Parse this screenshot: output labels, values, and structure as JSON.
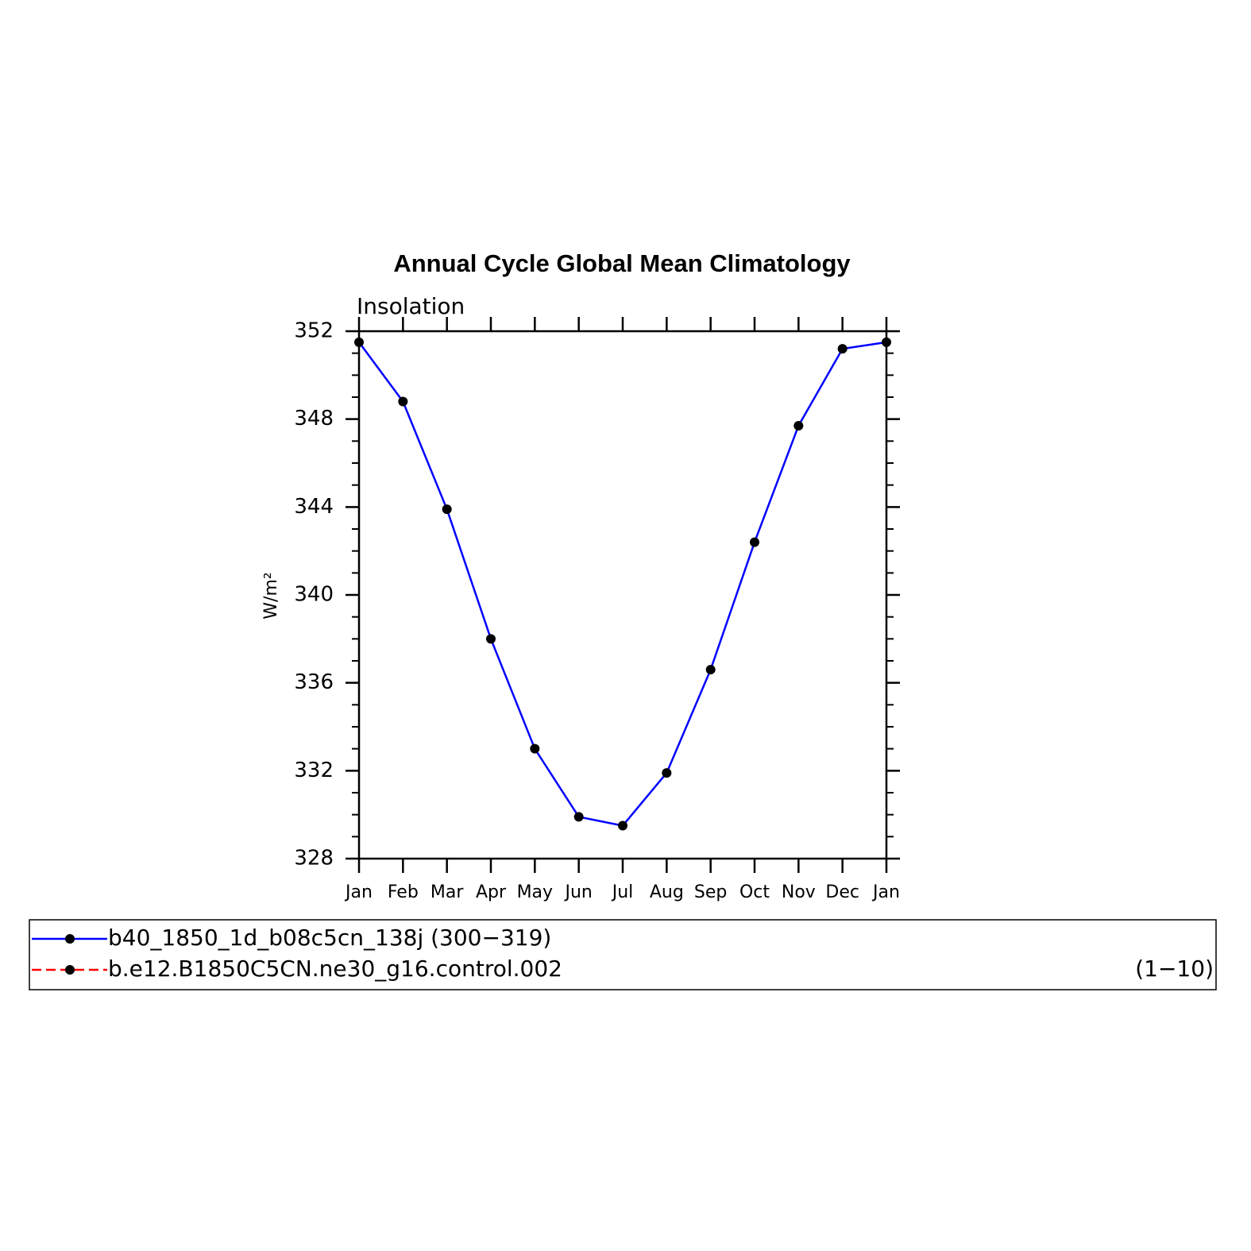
{
  "chart_data": {
    "type": "line",
    "title": "Annual Cycle Global Mean Climatology",
    "subtitle": "Insolation",
    "y_label": "W/m²",
    "categories": [
      "Jan",
      "Feb",
      "Mar",
      "Apr",
      "May",
      "Jun",
      "Jul",
      "Aug",
      "Sep",
      "Oct",
      "Nov",
      "Dec",
      "Jan"
    ],
    "series": [
      {
        "name": "b40_1850_1d_b08c5cn_138j (300−319)",
        "color": "#0000ff",
        "dash": false,
        "values": [
          351.5,
          348.8,
          343.9,
          338.0,
          333.0,
          329.9,
          329.5,
          331.9,
          336.6,
          342.4,
          347.7,
          351.2,
          351.5
        ]
      },
      {
        "name": "b.e12.B1850C5CN.ne30_g16.control.002",
        "period": "(1−10)",
        "color": "#ff0000",
        "dash": true,
        "values": [
          null,
          null,
          null,
          null,
          null,
          null,
          null,
          null,
          null,
          null,
          null,
          null,
          null
        ]
      }
    ],
    "ylim": [
      328,
      352
    ],
    "yticks": [
      328,
      332,
      336,
      340,
      344,
      348,
      352
    ],
    "yminor_step": 1,
    "marker_color": "#000000"
  }
}
